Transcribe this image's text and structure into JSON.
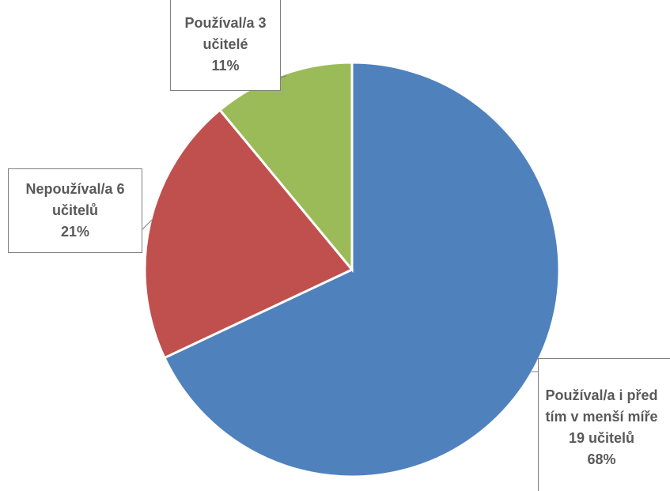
{
  "chart_data": {
    "type": "pie",
    "categories": [
      "Používal/a i před tím v menší míře 19 učitelů",
      "Nepoužíval/a 6 učitelů",
      "Používal/a 3 učitelé"
    ],
    "values": [
      68,
      21,
      11
    ],
    "value_labels": [
      "68%",
      "21%",
      "11%"
    ],
    "colors": [
      "#4f81bd",
      "#c0504d",
      "#9bbb59"
    ]
  }
}
